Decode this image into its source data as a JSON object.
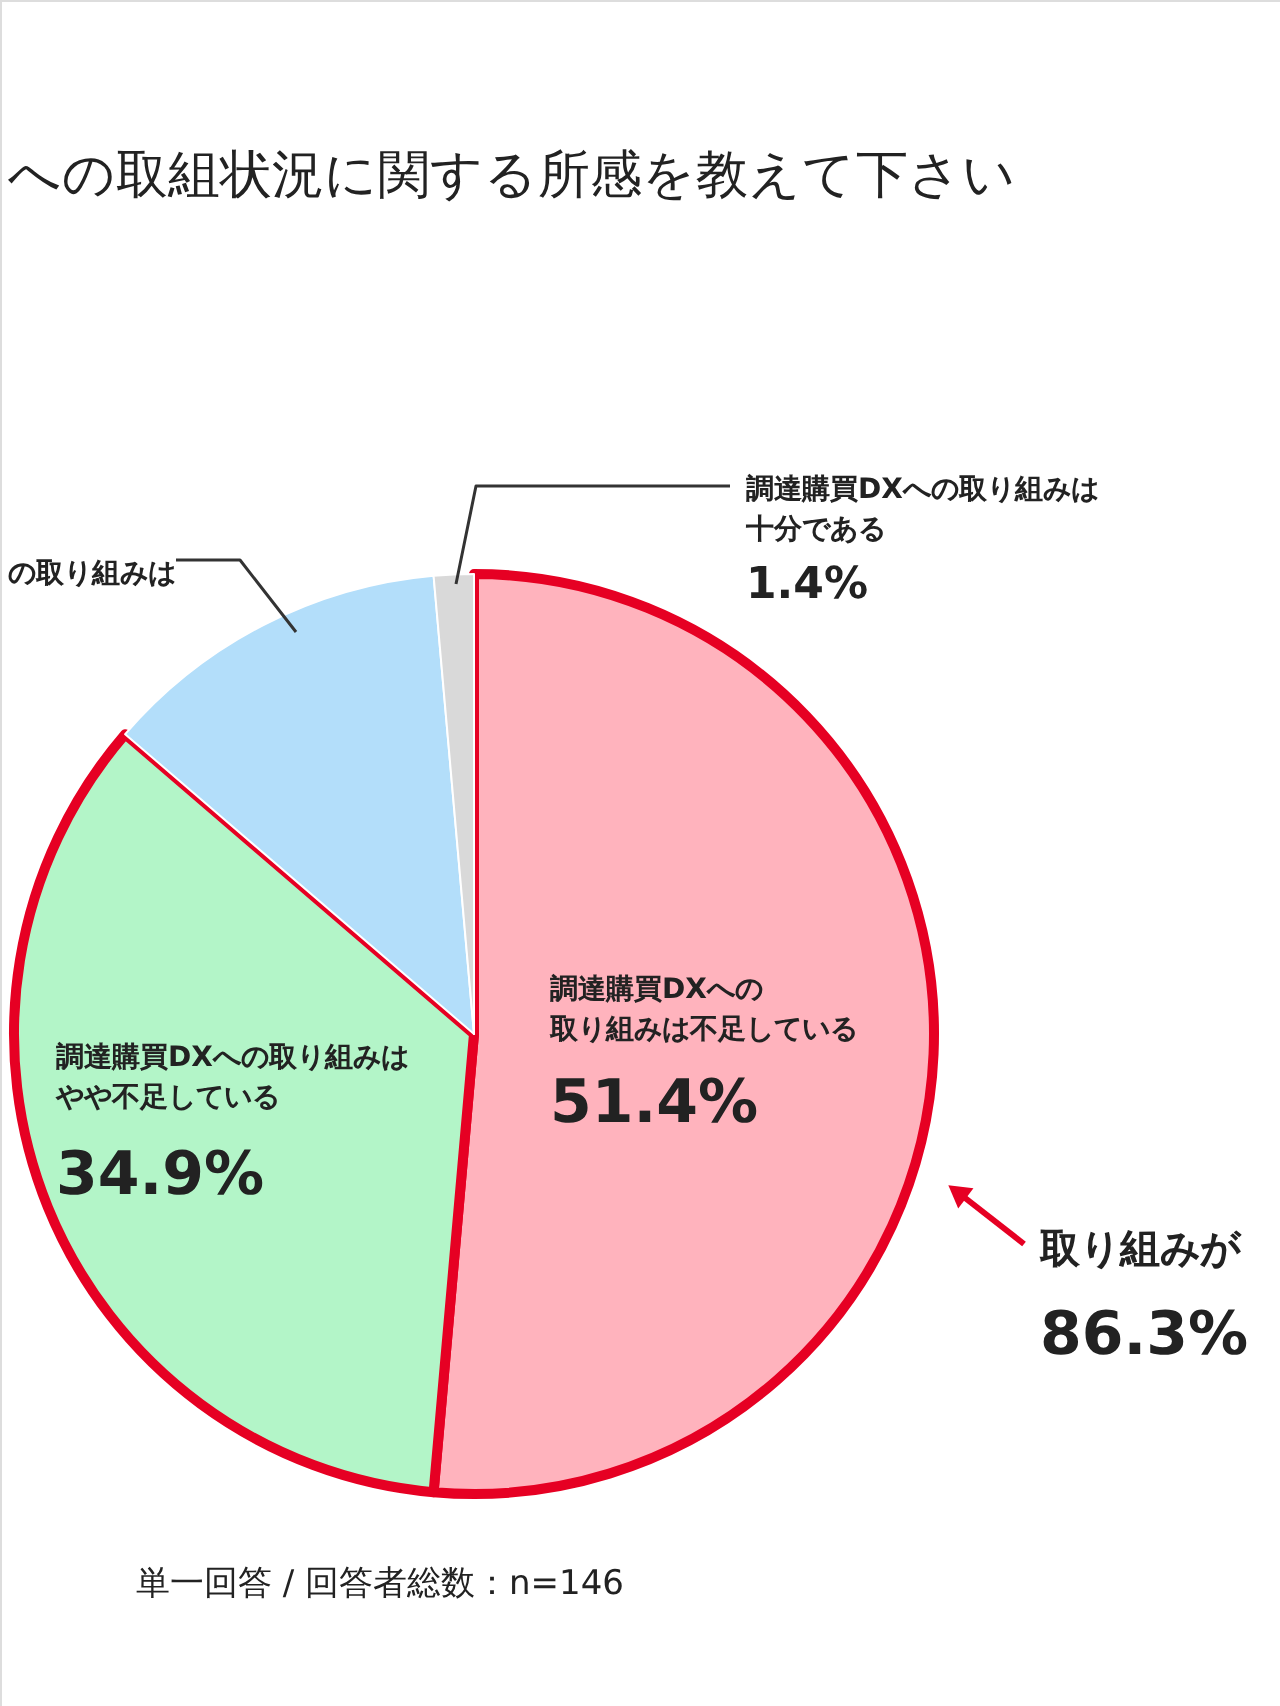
{
  "chart_data": {
    "type": "pie",
    "title": "への取組状況に関する所感を教えて下さい",
    "categories": [
      "調達購買DXへの取り組みは不足している",
      "調達購買DXへの取り組みはやや不足している",
      "の取り組みは",
      "調達購買DXへの取り組みは十分である"
    ],
    "values": [
      51.4,
      34.9,
      12.3,
      1.4
    ],
    "colors": [
      "#ffb3bd",
      "#b3f5c8",
      "#b3defa",
      "#d9d9d9"
    ],
    "value_labels": [
      "51.4%",
      "34.9%",
      null,
      "1.4%"
    ],
    "annotations": [
      "取り組みが",
      "86.3%",
      "単一回答 / 回答者総数：n=146"
    ]
  }
}
